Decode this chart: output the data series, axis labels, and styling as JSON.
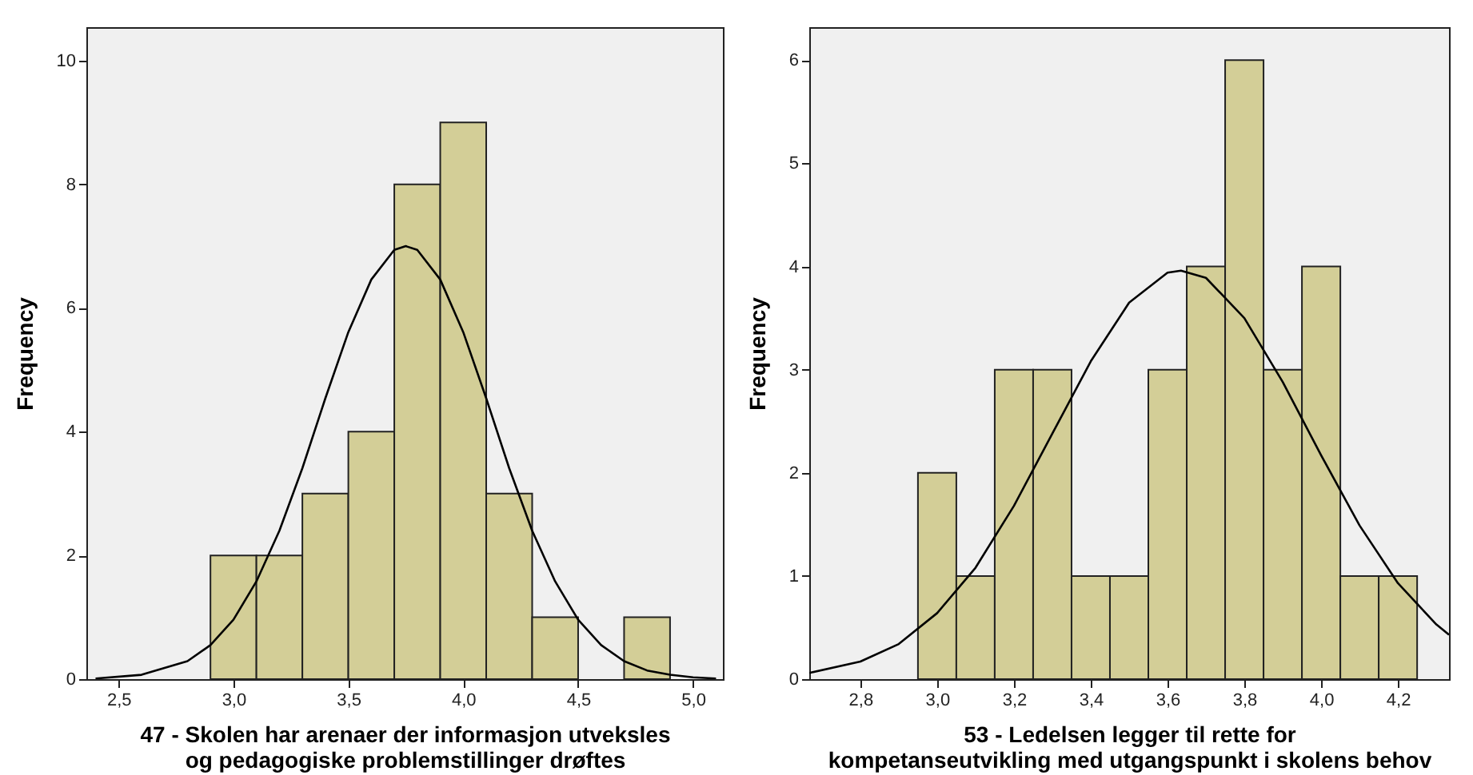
{
  "chart_data": [
    {
      "type": "histogram",
      "xlabel": "47 - Skolen har arenaer der informasjon utveksles og pedagogiske problemstillinger drøftes",
      "ylabel": "Frequency",
      "xlim": [
        2.36,
        5.13
      ],
      "ylim": [
        0,
        10.54
      ],
      "xticks": [
        {
          "value": 2.5,
          "label": "2,5"
        },
        {
          "value": 3.0,
          "label": "3,0"
        },
        {
          "value": 3.5,
          "label": "3,5"
        },
        {
          "value": 4.0,
          "label": "4,0"
        },
        {
          "value": 4.5,
          "label": "4,5"
        },
        {
          "value": 5.0,
          "label": "5,0"
        }
      ],
      "yticks": [
        0,
        2,
        4,
        6,
        8,
        10
      ],
      "grid": false,
      "series": [
        {
          "color": "#d3ce97",
          "bins": [
            2.9,
            3.1,
            3.3,
            3.5,
            3.7,
            3.9,
            4.1,
            4.3,
            4.5,
            4.7,
            4.9
          ],
          "values": [
            2,
            2,
            3,
            4,
            8,
            9,
            3,
            1,
            0,
            1
          ]
        },
        {
          "type": "line",
          "color": "#000000",
          "x": [
            2.4,
            2.6,
            2.8,
            2.9,
            3.0,
            3.1,
            3.2,
            3.3,
            3.4,
            3.5,
            3.6,
            3.7,
            3.75,
            3.8,
            3.9,
            4.0,
            4.1,
            4.2,
            4.3,
            4.4,
            4.5,
            4.6,
            4.7,
            4.8,
            4.9,
            5.0,
            5.1
          ],
          "values": [
            0.01,
            0.07,
            0.29,
            0.55,
            0.96,
            1.58,
            2.4,
            3.41,
            4.54,
            5.61,
            6.46,
            6.94,
            7,
            6.94,
            6.46,
            5.61,
            4.54,
            3.41,
            2.4,
            1.58,
            0.96,
            0.55,
            0.29,
            0.14,
            0.07,
            0.03,
            0.01
          ]
        }
      ]
    },
    {
      "type": "histogram",
      "xlabel": "53 - Ledelsen legger til rette for kompetanseutvikling med utgangspunkt i skolens behov",
      "ylabel": "Frequency",
      "xlim": [
        2.667,
        4.333
      ],
      "ylim": [
        0,
        6.32
      ],
      "xticks": [
        {
          "value": 2.8,
          "label": "2,8"
        },
        {
          "value": 3.0,
          "label": "3,0"
        },
        {
          "value": 3.2,
          "label": "3,2"
        },
        {
          "value": 3.4,
          "label": "3,4"
        },
        {
          "value": 3.6,
          "label": "3,6"
        },
        {
          "value": 3.8,
          "label": "3,8"
        },
        {
          "value": 4.0,
          "label": "4,0"
        },
        {
          "value": 4.2,
          "label": "4,2"
        }
      ],
      "yticks": [
        0,
        1,
        2,
        3,
        4,
        5,
        6
      ],
      "grid": false,
      "series": [
        {
          "color": "#d3ce97",
          "bins": [
            2.95,
            3.05,
            3.15,
            3.25,
            3.35,
            3.45,
            3.55,
            3.65,
            3.75,
            3.85,
            3.95,
            4.05,
            4.15,
            4.25
          ],
          "values": [
            2,
            1,
            3,
            3,
            1,
            1,
            3,
            4,
            6,
            3,
            4,
            1,
            1
          ]
        },
        {
          "type": "line",
          "color": "#000000",
          "x": [
            2.667,
            2.8,
            2.9,
            3.0,
            3.1,
            3.2,
            3.3,
            3.4,
            3.5,
            3.6,
            3.635,
            3.7,
            3.8,
            3.9,
            4.0,
            4.1,
            4.2,
            4.3,
            4.333
          ],
          "values": [
            0.06,
            0.17,
            0.34,
            0.64,
            1.08,
            1.68,
            2.38,
            3.08,
            3.65,
            3.94,
            3.96,
            3.89,
            3.5,
            2.88,
            2.17,
            1.49,
            0.93,
            0.53,
            0.43
          ]
        }
      ]
    }
  ]
}
